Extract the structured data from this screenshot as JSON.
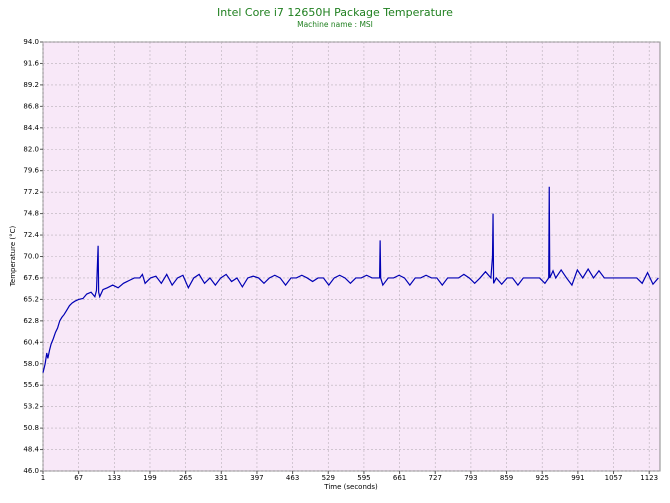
{
  "chart_data": {
    "type": "line",
    "title": "Intel Core i7 12650H Package Temperature",
    "subtitle": "Machine name : MSI",
    "x_label": "Time (seconds)",
    "y_label": "Temperature (°C)",
    "color": "#0000b4",
    "grid": true,
    "x": [
      1,
      3,
      5,
      8,
      10,
      13,
      16,
      20,
      24,
      28,
      32,
      36,
      40,
      45,
      50,
      55,
      60,
      67,
      75,
      82,
      90,
      97,
      100,
      103,
      104,
      106,
      112,
      120,
      130,
      140,
      150,
      160,
      170,
      180,
      185,
      190,
      200,
      210,
      220,
      230,
      240,
      250,
      260,
      270,
      280,
      290,
      300,
      310,
      320,
      330,
      340,
      350,
      360,
      370,
      380,
      390,
      400,
      410,
      420,
      430,
      440,
      450,
      460,
      470,
      480,
      490,
      500,
      510,
      520,
      530,
      540,
      550,
      560,
      570,
      580,
      590,
      600,
      610,
      620,
      624,
      625,
      626,
      630,
      640,
      650,
      660,
      670,
      680,
      690,
      700,
      710,
      720,
      730,
      740,
      750,
      760,
      770,
      780,
      790,
      800,
      810,
      820,
      830,
      833,
      834,
      835,
      840,
      850,
      860,
      870,
      880,
      890,
      900,
      910,
      920,
      930,
      937,
      938,
      939,
      945,
      950,
      960,
      970,
      980,
      990,
      1000,
      1010,
      1020,
      1030,
      1040,
      1050,
      1060,
      1070,
      1080,
      1090,
      1100,
      1110,
      1120,
      1130,
      1140
    ],
    "values": [
      57.0,
      57.5,
      58.0,
      59.2,
      58.6,
      59.5,
      60.2,
      60.8,
      61.5,
      62.0,
      62.8,
      63.2,
      63.5,
      64.0,
      64.5,
      64.8,
      65.0,
      65.2,
      65.3,
      65.8,
      66.0,
      65.5,
      66.2,
      71.2,
      66.0,
      65.5,
      66.3,
      66.5,
      66.8,
      66.5,
      67.0,
      67.3,
      67.6,
      67.6,
      68.0,
      67.0,
      67.6,
      67.8,
      67.0,
      68.0,
      66.8,
      67.6,
      67.9,
      66.5,
      67.6,
      68.0,
      67.0,
      67.6,
      66.8,
      67.6,
      68.0,
      67.2,
      67.6,
      66.6,
      67.6,
      67.8,
      67.6,
      67.0,
      67.6,
      67.9,
      67.6,
      66.8,
      67.6,
      67.6,
      67.9,
      67.6,
      67.2,
      67.6,
      67.6,
      66.8,
      67.6,
      67.9,
      67.6,
      67.0,
      67.6,
      67.6,
      67.9,
      67.6,
      67.6,
      67.6,
      71.8,
      67.6,
      66.8,
      67.6,
      67.6,
      67.9,
      67.6,
      66.8,
      67.6,
      67.6,
      67.9,
      67.6,
      67.6,
      66.8,
      67.6,
      67.6,
      67.6,
      68.0,
      67.6,
      67.0,
      67.6,
      68.3,
      67.6,
      70.0,
      74.8,
      67.0,
      67.6,
      66.9,
      67.6,
      67.6,
      66.8,
      67.6,
      67.6,
      67.6,
      67.6,
      67.0,
      67.6,
      77.8,
      67.6,
      68.4,
      67.6,
      68.5,
      67.6,
      66.8,
      68.5,
      67.6,
      68.6,
      67.6,
      68.4,
      67.6,
      67.6,
      67.6,
      67.6,
      67.6,
      67.6,
      67.6,
      67.0,
      68.2,
      66.9,
      67.6
    ],
    "xlim": [
      1,
      1143
    ],
    "xticks": [
      1,
      67,
      133,
      199,
      265,
      331,
      397,
      463,
      529,
      595,
      661,
      727,
      793,
      859,
      925,
      991,
      1057,
      1123
    ],
    "ylim": [
      46,
      94
    ],
    "yticks": [
      {
        "value": 46,
        "label": "46.0"
      },
      48.4,
      50.8,
      53.2,
      55.6,
      {
        "value": 58,
        "label": "58.0"
      },
      60.4,
      62.8,
      65.2,
      67.6,
      {
        "value": 70,
        "label": "70.0"
      },
      72.4,
      74.8,
      77.2,
      79.6,
      {
        "value": 82,
        "label": "82.0"
      },
      84.4,
      86.8,
      89.2,
      91.6,
      {
        "value": 94,
        "label": "94.0"
      }
    ]
  }
}
